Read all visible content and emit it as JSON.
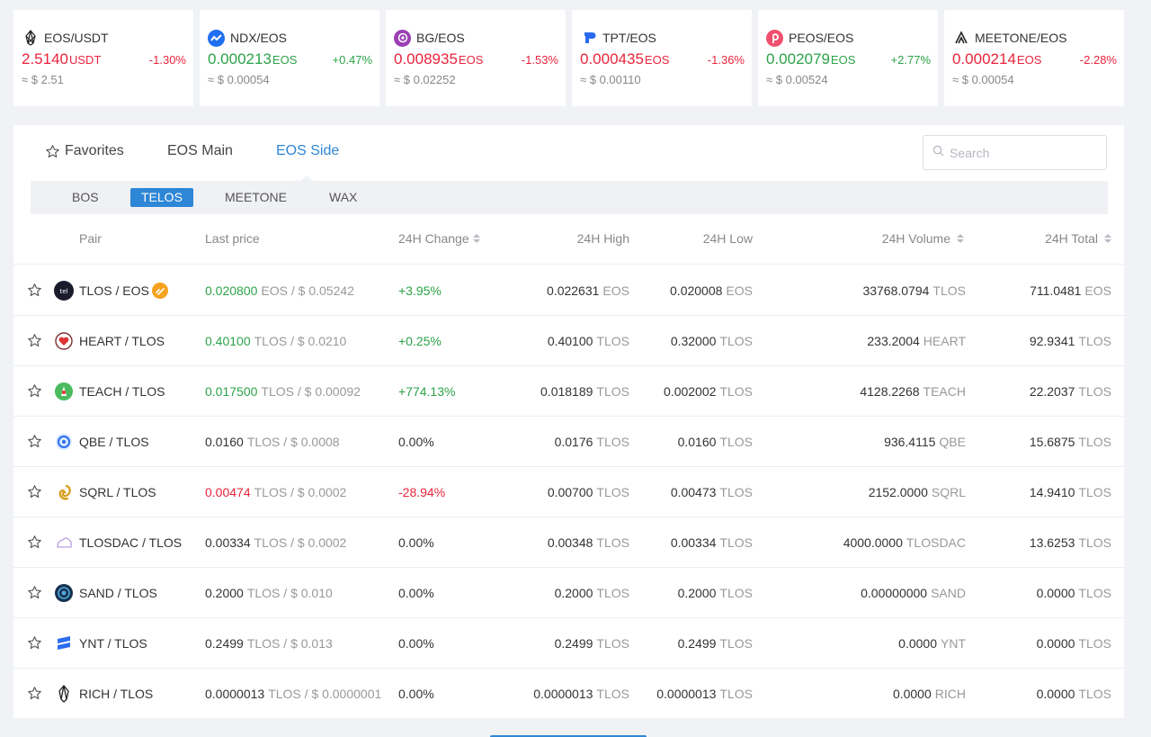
{
  "tickers": [
    {
      "pair": "EOS/USDT",
      "price": "2.5140",
      "unit": "USDT",
      "change": "-1.30%",
      "trend": "down",
      "usd": "≈ $ 2.51",
      "icon": "eos-icon"
    },
    {
      "pair": "NDX/EOS",
      "price": "0.000213",
      "unit": "EOS",
      "change": "+0.47%",
      "trend": "up",
      "usd": "≈ $ 0.00054",
      "icon": "ndx-icon"
    },
    {
      "pair": "BG/EOS",
      "price": "0.008935",
      "unit": "EOS",
      "change": "-1.53%",
      "trend": "down",
      "usd": "≈ $ 0.02252",
      "icon": "bg-icon"
    },
    {
      "pair": "TPT/EOS",
      "price": "0.000435",
      "unit": "EOS",
      "change": "-1.36%",
      "trend": "down",
      "usd": "≈ $ 0.00110",
      "icon": "tpt-icon"
    },
    {
      "pair": "PEOS/EOS",
      "price": "0.002079",
      "unit": "EOS",
      "change": "+2.77%",
      "trend": "up",
      "usd": "≈ $ 0.00524",
      "icon": "peos-icon"
    },
    {
      "pair": "MEETONE/EOS",
      "price": "0.000214",
      "unit": "EOS",
      "change": "-2.28%",
      "trend": "down",
      "usd": "≈ $ 0.00054",
      "icon": "meetone-icon"
    }
  ],
  "tabs": {
    "favorites": "Favorites",
    "eos_main": "EOS Main",
    "eos_side": "EOS Side",
    "active": "eos_side"
  },
  "search": {
    "placeholder": "Search"
  },
  "subtabs": [
    "BOS",
    "TELOS",
    "MEETONE",
    "WAX"
  ],
  "active_subtab": "TELOS",
  "columns": {
    "pair": "Pair",
    "last": "Last price",
    "change": "24H Change",
    "high": "24H High",
    "low": "24H Low",
    "volume": "24H Volume",
    "total": "24H Total"
  },
  "rows": [
    {
      "pair": "TLOS / EOS",
      "last": "0.020800",
      "last_unit": "EOS / $ 0.05242",
      "last_trend": "up",
      "change": "+3.95%",
      "change_trend": "up",
      "high": "0.022631",
      "high_unit": "EOS",
      "low": "0.020008",
      "low_unit": "EOS",
      "vol": "33768.0794",
      "vol_unit": "TLOS",
      "total": "711.0481",
      "total_unit": "EOS",
      "icon": "telos-icon",
      "badge": true
    },
    {
      "pair": "HEART / TLOS",
      "last": "0.40100",
      "last_unit": "TLOS / $ 0.0210",
      "last_trend": "up",
      "change": "+0.25%",
      "change_trend": "up",
      "high": "0.40100",
      "high_unit": "TLOS",
      "low": "0.32000",
      "low_unit": "TLOS",
      "vol": "233.2004",
      "vol_unit": "HEART",
      "total": "92.9341",
      "total_unit": "TLOS",
      "icon": "heart-icon"
    },
    {
      "pair": "TEACH / TLOS",
      "last": "0.017500",
      "last_unit": "TLOS / $ 0.00092",
      "last_trend": "up",
      "change": "+774.13%",
      "change_trend": "up",
      "high": "0.018189",
      "high_unit": "TLOS",
      "low": "0.002002",
      "low_unit": "TLOS",
      "vol": "4128.2268",
      "vol_unit": "TEACH",
      "total": "22.2037",
      "total_unit": "TLOS",
      "icon": "teach-icon"
    },
    {
      "pair": "QBE / TLOS",
      "last": "0.0160",
      "last_unit": "TLOS / $ 0.0008",
      "last_trend": "flat",
      "change": "0.00%",
      "change_trend": "flat",
      "high": "0.0176",
      "high_unit": "TLOS",
      "low": "0.0160",
      "low_unit": "TLOS",
      "vol": "936.4115",
      "vol_unit": "QBE",
      "total": "15.6875",
      "total_unit": "TLOS",
      "icon": "qbe-icon"
    },
    {
      "pair": "SQRL / TLOS",
      "last": "0.00474",
      "last_unit": "TLOS / $ 0.0002",
      "last_trend": "down",
      "change": "-28.94%",
      "change_trend": "down",
      "high": "0.00700",
      "high_unit": "TLOS",
      "low": "0.00473",
      "low_unit": "TLOS",
      "vol": "2152.0000",
      "vol_unit": "SQRL",
      "total": "14.9410",
      "total_unit": "TLOS",
      "icon": "sqrl-icon"
    },
    {
      "pair": "TLOSDAC / TLOS",
      "last": "0.00334",
      "last_unit": "TLOS / $ 0.0002",
      "last_trend": "flat",
      "change": "0.00%",
      "change_trend": "flat",
      "high": "0.00348",
      "high_unit": "TLOS",
      "low": "0.00334",
      "low_unit": "TLOS",
      "vol": "4000.0000",
      "vol_unit": "TLOSDAC",
      "total": "13.6253",
      "total_unit": "TLOS",
      "icon": "tlosdac-icon"
    },
    {
      "pair": "SAND / TLOS",
      "last": "0.2000",
      "last_unit": "TLOS / $ 0.010",
      "last_trend": "flat",
      "change": "0.00%",
      "change_trend": "flat",
      "high": "0.2000",
      "high_unit": "TLOS",
      "low": "0.2000",
      "low_unit": "TLOS",
      "vol": "0.00000000",
      "vol_unit": "SAND",
      "total": "0.0000",
      "total_unit": "TLOS",
      "icon": "sand-icon"
    },
    {
      "pair": "YNT / TLOS",
      "last": "0.2499",
      "last_unit": "TLOS / $ 0.013",
      "last_trend": "flat",
      "change": "0.00%",
      "change_trend": "flat",
      "high": "0.2499",
      "high_unit": "TLOS",
      "low": "0.2499",
      "low_unit": "TLOS",
      "vol": "0.0000",
      "vol_unit": "YNT",
      "total": "0.0000",
      "total_unit": "TLOS",
      "icon": "ynt-icon"
    },
    {
      "pair": "RICH / TLOS",
      "last": "0.0000013",
      "last_unit": "TLOS / $ 0.0000001",
      "last_trend": "flat",
      "change": "0.00%",
      "change_trend": "flat",
      "high": "0.0000013",
      "high_unit": "TLOS",
      "low": "0.0000013",
      "low_unit": "TLOS",
      "vol": "0.0000",
      "vol_unit": "RICH",
      "total": "0.0000",
      "total_unit": "TLOS",
      "icon": "rich-icon"
    }
  ],
  "colors": {
    "up": "#2ca348",
    "down": "#e8243c",
    "accent": "#2e86d6"
  }
}
